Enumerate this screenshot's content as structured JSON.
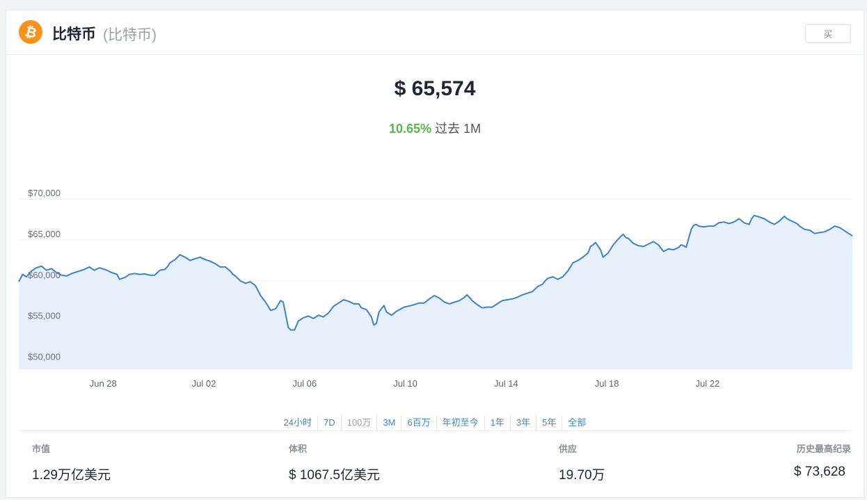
{
  "header": {
    "coin_name": "比特币",
    "coin_sub": "(比特币)",
    "buy_label": "买",
    "icon": "bitcoin-icon",
    "icon_color": "#f7931a"
  },
  "price": "$ 65,574",
  "change": {
    "percent": "10.65%",
    "label": "过去 1M",
    "color": "#53b947"
  },
  "chart_data": {
    "type": "area",
    "line_color": "#3b82cc",
    "fill_color": "#e8f1fb",
    "ylim": [
      49200,
      70700
    ],
    "y_ticks": [
      {
        "value": 70000,
        "label": "$70,000"
      },
      {
        "value": 65000,
        "label": "$65,000"
      },
      {
        "value": 60000,
        "label": "$60,000"
      },
      {
        "value": 55000,
        "label": "$55,000"
      },
      {
        "value": 50000,
        "label": "$50,000"
      }
    ],
    "x_ticks": [
      {
        "day": 3,
        "label": "Jun 28"
      },
      {
        "day": 7,
        "label": "Jul 02"
      },
      {
        "day": 11,
        "label": "Jul 06"
      },
      {
        "day": 15,
        "label": "Jul 10"
      },
      {
        "day": 19,
        "label": "Jul 14"
      },
      {
        "day": 23,
        "label": "Jul 18"
      },
      {
        "day": 27,
        "label": "Jul 22"
      }
    ],
    "x_range_days": [
      0,
      30
    ],
    "grid": true,
    "points": [
      [
        0.0,
        59900
      ],
      [
        0.15,
        60800
      ],
      [
        0.3,
        60500
      ],
      [
        0.5,
        61200
      ],
      [
        0.7,
        61600
      ],
      [
        0.9,
        61800
      ],
      [
        1.1,
        61300
      ],
      [
        1.3,
        61500
      ],
      [
        1.5,
        61000
      ],
      [
        1.7,
        60700
      ],
      [
        1.9,
        60600
      ],
      [
        2.1,
        60900
      ],
      [
        2.3,
        61100
      ],
      [
        2.6,
        61400
      ],
      [
        2.8,
        61700
      ],
      [
        3.0,
        61300
      ],
      [
        3.2,
        61600
      ],
      [
        3.5,
        61300
      ],
      [
        3.7,
        61000
      ],
      [
        3.9,
        60800
      ],
      [
        4.0,
        60200
      ],
      [
        4.2,
        60400
      ],
      [
        4.4,
        60800
      ],
      [
        4.6,
        60900
      ],
      [
        4.8,
        60800
      ],
      [
        5.0,
        60850
      ],
      [
        5.2,
        60700
      ],
      [
        5.4,
        60700
      ],
      [
        5.6,
        61300
      ],
      [
        5.8,
        61400
      ],
      [
        5.9,
        61700
      ],
      [
        6.0,
        62200
      ],
      [
        6.2,
        62600
      ],
      [
        6.4,
        63200
      ],
      [
        6.6,
        62900
      ],
      [
        6.8,
        62500
      ],
      [
        7.0,
        62700
      ],
      [
        7.2,
        62900
      ],
      [
        7.4,
        62600
      ],
      [
        7.6,
        62400
      ],
      [
        7.8,
        62100
      ],
      [
        8.0,
        61700
      ],
      [
        8.2,
        61700
      ],
      [
        8.4,
        61200
      ],
      [
        8.5,
        60800
      ],
      [
        8.6,
        60600
      ],
      [
        8.8,
        60000
      ],
      [
        9.0,
        59700
      ],
      [
        9.2,
        59900
      ],
      [
        9.4,
        59400
      ],
      [
        9.6,
        58200
      ],
      [
        9.8,
        57400
      ],
      [
        10.0,
        56400
      ],
      [
        10.2,
        56600
      ],
      [
        10.4,
        57600
      ],
      [
        10.5,
        57400
      ],
      [
        10.6,
        55900
      ],
      [
        10.7,
        54300
      ],
      [
        10.8,
        54000
      ],
      [
        10.95,
        54000
      ],
      [
        11.1,
        55100
      ],
      [
        11.3,
        55500
      ],
      [
        11.5,
        55700
      ],
      [
        11.7,
        55400
      ],
      [
        11.9,
        55800
      ],
      [
        12.1,
        55600
      ],
      [
        12.3,
        56100
      ],
      [
        12.5,
        56900
      ],
      [
        12.7,
        57300
      ],
      [
        12.9,
        57700
      ],
      [
        13.1,
        57500
      ],
      [
        13.3,
        57200
      ],
      [
        13.5,
        57200
      ],
      [
        13.6,
        56700
      ],
      [
        13.8,
        56500
      ],
      [
        14.0,
        55600
      ],
      [
        14.1,
        54600
      ],
      [
        14.2,
        54800
      ],
      [
        14.3,
        56200
      ],
      [
        14.5,
        57000
      ],
      [
        14.6,
        56200
      ],
      [
        14.8,
        55800
      ],
      [
        15.0,
        56300
      ],
      [
        15.3,
        56800
      ],
      [
        15.6,
        57000
      ],
      [
        15.9,
        57300
      ],
      [
        16.1,
        57300
      ],
      [
        16.3,
        57800
      ],
      [
        16.5,
        58200
      ],
      [
        16.7,
        57900
      ],
      [
        16.9,
        57400
      ],
      [
        17.1,
        57200
      ],
      [
        17.3,
        57400
      ],
      [
        17.5,
        57600
      ],
      [
        17.7,
        58000
      ],
      [
        17.8,
        58300
      ],
      [
        18.0,
        57600
      ],
      [
        18.2,
        57100
      ],
      [
        18.4,
        56700
      ],
      [
        18.6,
        56800
      ],
      [
        18.8,
        56800
      ],
      [
        19.0,
        57200
      ],
      [
        19.2,
        57600
      ],
      [
        19.4,
        57700
      ],
      [
        19.6,
        57800
      ],
      [
        19.8,
        58000
      ],
      [
        20.0,
        58300
      ],
      [
        20.2,
        58500
      ],
      [
        20.4,
        58700
      ],
      [
        20.6,
        59300
      ],
      [
        20.8,
        59600
      ],
      [
        20.9,
        60000
      ],
      [
        21.0,
        60300
      ],
      [
        21.2,
        60500
      ],
      [
        21.4,
        60200
      ],
      [
        21.6,
        60500
      ],
      [
        21.8,
        61200
      ],
      [
        22.0,
        62200
      ],
      [
        22.2,
        62500
      ],
      [
        22.4,
        62900
      ],
      [
        22.6,
        63400
      ],
      [
        22.7,
        64200
      ],
      [
        22.8,
        64400
      ],
      [
        22.9,
        64700
      ],
      [
        23.1,
        63800
      ],
      [
        23.2,
        62900
      ],
      [
        23.4,
        63400
      ],
      [
        23.6,
        64400
      ],
      [
        23.8,
        65100
      ],
      [
        24.0,
        65700
      ],
      [
        24.1,
        65300
      ],
      [
        24.2,
        65200
      ],
      [
        24.4,
        64600
      ],
      [
        24.6,
        64300
      ],
      [
        24.8,
        64200
      ],
      [
        25.0,
        64500
      ],
      [
        25.2,
        64800
      ],
      [
        25.4,
        64400
      ],
      [
        25.6,
        63600
      ],
      [
        25.8,
        63900
      ],
      [
        26.0,
        63800
      ],
      [
        26.2,
        64100
      ],
      [
        26.3,
        64400
      ],
      [
        26.4,
        64300
      ],
      [
        26.5,
        64100
      ],
      [
        26.6,
        65200
      ],
      [
        26.7,
        66300
      ],
      [
        26.8,
        66800
      ],
      [
        26.9,
        66900
      ],
      [
        27.0,
        66700
      ],
      [
        27.2,
        66600
      ],
      [
        27.4,
        66700
      ],
      [
        27.6,
        66700
      ],
      [
        27.8,
        67100
      ],
      [
        28.0,
        67200
      ],
      [
        28.2,
        67000
      ],
      [
        28.4,
        67200
      ],
      [
        28.6,
        67600
      ],
      [
        28.8,
        67100
      ],
      [
        29.0,
        66900
      ],
      [
        29.1,
        67600
      ],
      [
        29.2,
        68000
      ],
      [
        29.4,
        67800
      ],
      [
        29.6,
        67600
      ],
      [
        29.8,
        67200
      ],
      [
        30.0,
        66900
      ],
      [
        30.2,
        67300
      ],
      [
        30.4,
        67900
      ],
      [
        30.5,
        67600
      ],
      [
        30.7,
        67300
      ],
      [
        30.9,
        67000
      ],
      [
        31.0,
        66700
      ],
      [
        31.2,
        66300
      ],
      [
        31.4,
        66200
      ],
      [
        31.5,
        66000
      ],
      [
        31.6,
        65800
      ],
      [
        31.8,
        65900
      ],
      [
        32.0,
        66000
      ],
      [
        32.2,
        66300
      ],
      [
        32.4,
        66700
      ],
      [
        32.6,
        66500
      ],
      [
        32.8,
        66100
      ],
      [
        32.95,
        65800
      ],
      [
        33.1,
        65500
      ]
    ]
  },
  "time_ranges": [
    "24小时",
    "7D",
    "100万",
    "3M",
    "6百万",
    "年初至今",
    "1年",
    "3年",
    "5年",
    "全部"
  ],
  "active_range": "100万",
  "stats": [
    {
      "label": "市值",
      "value": "1.29万亿美元"
    },
    {
      "label": "体积",
      "value": "$ 1067.5亿美元"
    },
    {
      "label": "供应",
      "value": "19.70万"
    },
    {
      "label": "历史最高纪录",
      "value": "$ 73,628"
    }
  ]
}
